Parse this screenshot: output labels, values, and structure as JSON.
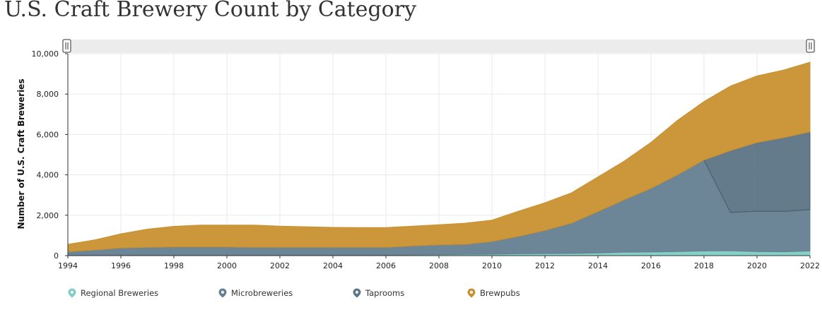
{
  "title": "U.S. Craft Brewery Count by Category",
  "colors": {
    "regional": "#7ecdc4",
    "microbreweries": "#647f92",
    "taprooms": "#5c7486",
    "brewpubs": "#c99030",
    "range_bar": "#ececec",
    "grid": "#e9e9e9"
  },
  "chart_data": {
    "type": "area",
    "stacked": true,
    "title": "U.S. Craft Brewery Count by Category",
    "ylabel": "Number of U.S. Craft Breweries",
    "xlabel": "",
    "xlim": [
      1994,
      2022
    ],
    "ylim": [
      0,
      10000
    ],
    "grid": true,
    "legend_position": "bottom-left",
    "x_ticks": [
      "1994",
      "1996",
      "1998",
      "2000",
      "2002",
      "2004",
      "2006",
      "2008",
      "2010",
      "2012",
      "2014",
      "2016",
      "2018",
      "2020",
      "2022"
    ],
    "y_ticks": [
      "0",
      "2,000",
      "4,000",
      "6,000",
      "8,000",
      "10,000"
    ],
    "x": [
      1994,
      1995,
      1996,
      1997,
      1998,
      1999,
      2000,
      2001,
      2002,
      2003,
      2004,
      2005,
      2006,
      2007,
      2008,
      2009,
      2010,
      2011,
      2012,
      2013,
      2014,
      2015,
      2016,
      2017,
      2018,
      2019,
      2020,
      2021,
      2022
    ],
    "series": [
      {
        "name": "Regional Breweries",
        "color_key": "regional",
        "values": [
          20,
          25,
          30,
          30,
          30,
          30,
          30,
          30,
          30,
          30,
          30,
          30,
          30,
          40,
          50,
          60,
          70,
          90,
          100,
          110,
          130,
          170,
          180,
          200,
          230,
          240,
          200,
          190,
          230
        ]
      },
      {
        "name": "Microbreweries",
        "color_key": "microbreweries",
        "values": [
          180,
          250,
          350,
          380,
          400,
          400,
          400,
          380,
          380,
          380,
          380,
          380,
          380,
          440,
          480,
          500,
          630,
          860,
          1150,
          1500,
          2050,
          2600,
          3150,
          3800,
          4500,
          1900,
          2000,
          2000,
          2050
        ]
      },
      {
        "name": "Taprooms",
        "color_key": "taprooms",
        "values": [
          0,
          0,
          0,
          0,
          0,
          0,
          0,
          0,
          0,
          0,
          0,
          0,
          0,
          0,
          0,
          0,
          0,
          0,
          0,
          0,
          0,
          0,
          0,
          0,
          0,
          3060,
          3400,
          3650,
          3850
        ]
      },
      {
        "name": "Brewpubs",
        "color_key": "brewpubs",
        "values": [
          360,
          500,
          700,
          900,
          1020,
          1080,
          1080,
          1100,
          1050,
          1020,
          990,
          980,
          980,
          980,
          1000,
          1050,
          1060,
          1250,
          1370,
          1500,
          1720,
          1920,
          2280,
          2700,
          2900,
          3200,
          3300,
          3350,
          3450
        ]
      }
    ]
  }
}
